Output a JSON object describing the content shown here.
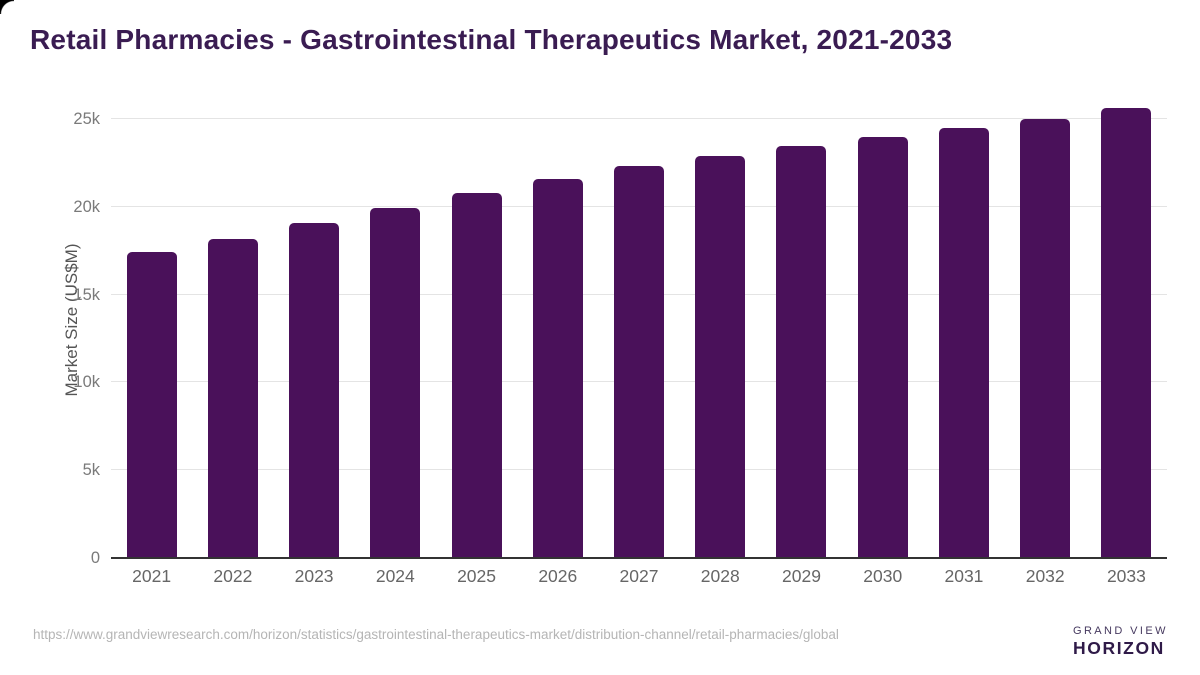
{
  "page": {
    "title": "Retail Pharmacies - Gastrointestinal Therapeutics Market, 2021-2033"
  },
  "chart_data": {
    "type": "bar",
    "title": "Retail Pharmacies - Gastrointestinal Therapeutics Market, 2021-2033",
    "categories": [
      "2021",
      "2022",
      "2023",
      "2024",
      "2025",
      "2026",
      "2027",
      "2028",
      "2029",
      "2030",
      "2031",
      "2032",
      "2033"
    ],
    "values": [
      17450,
      18150,
      19050,
      19950,
      20800,
      21600,
      22300,
      22900,
      23450,
      23950,
      24500,
      25000,
      25600
    ],
    "xlabel": "",
    "ylabel": "Market Size (US$M)",
    "units": "US$M",
    "ylim": [
      0,
      25000
    ],
    "yticks": [
      {
        "value": 0,
        "label": "0"
      },
      {
        "value": 5000,
        "label": "5k"
      },
      {
        "value": 10000,
        "label": "10k"
      },
      {
        "value": 15000,
        "label": "15k"
      },
      {
        "value": 20000,
        "label": "20k"
      },
      {
        "value": 25000,
        "label": "25k"
      }
    ],
    "grid": "horizontal",
    "legend": "none",
    "bar_color": "#4A115A"
  },
  "footer": {
    "source_url": "https://www.grandviewresearch.com/horizon/statistics/gastrointestinal-therapeutics-market/distribution-channel/retail-pharmacies/global",
    "logo": {
      "top": "GRAND VIEW",
      "bottom": "HORIZON"
    }
  },
  "colors": {
    "title": "#3A1C52",
    "bar": "#4A115A",
    "gridline": "#e4e4e4",
    "axis_line": "#333333",
    "tick_label": "#7a7a7a",
    "x_label": "#666666",
    "source_text": "#b5b5b5",
    "logo_purple": "#2F1A48",
    "logo_blue": "#5FC3F0"
  }
}
